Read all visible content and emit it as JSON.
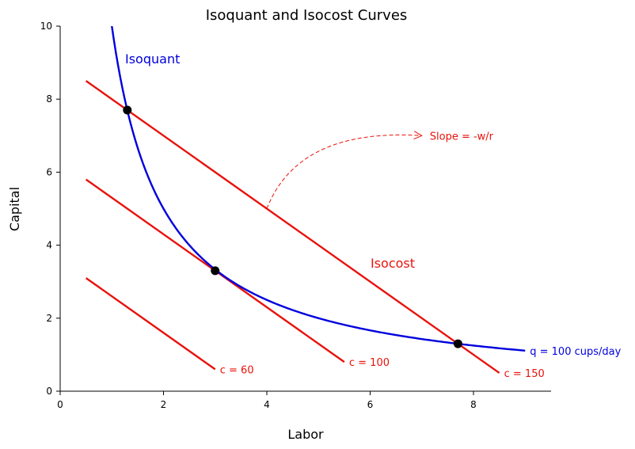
{
  "chart_data": {
    "type": "line",
    "title": "Isoquant and Isocost Curves",
    "xlabel": "Labor",
    "ylabel": "Capital",
    "xlim": [
      0,
      9.5
    ],
    "ylim": [
      0,
      10
    ],
    "xticks": [
      "0",
      "2",
      "4",
      "6",
      "8"
    ],
    "yticks": [
      "0",
      "2",
      "4",
      "6",
      "8",
      "10"
    ],
    "grid": false,
    "isoquant": {
      "label": "Isoquant",
      "end_label": "q = 100 cups/day",
      "color": "#0000dd",
      "k": 10,
      "x_range": [
        1.0,
        9.0
      ]
    },
    "isocost_label": "Isocost",
    "isocost_color": "#e8120c",
    "isocosts": [
      {
        "label": "c = 60",
        "x": [
          0.5,
          3.0
        ],
        "y": [
          3.1,
          0.6
        ]
      },
      {
        "label": "c = 100",
        "x": [
          0.5,
          5.5
        ],
        "y": [
          5.8,
          0.8
        ]
      },
      {
        "label": "c = 150",
        "x": [
          0.5,
          8.5
        ],
        "y": [
          8.5,
          0.5
        ]
      }
    ],
    "tangency_points": [
      {
        "x": 1.3,
        "y": 7.7
      },
      {
        "x": 3.0,
        "y": 3.3
      },
      {
        "x": 7.7,
        "y": 1.3
      }
    ],
    "annotation": {
      "text": "Slope = -w/r",
      "from": [
        4.0,
        5.0
      ],
      "to": [
        7.0,
        7.0
      ]
    }
  }
}
